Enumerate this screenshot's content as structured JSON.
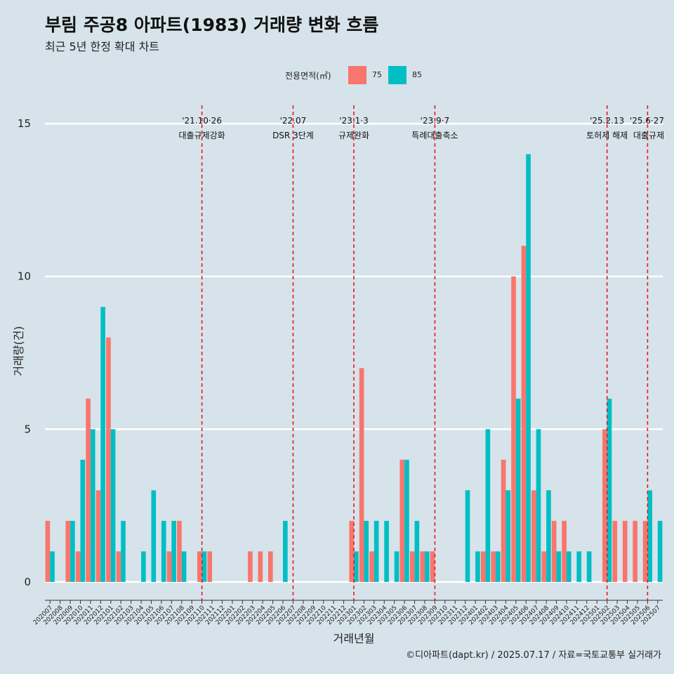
{
  "title": "부림 주공8 아파트(1983) 거래량 변화 흐름",
  "subtitle": "최근 5년 한정 확대 차트",
  "caption": "©디아파트(dapt.kr) / 2025.07.17 / 자료=국토교통부 실거래가",
  "legend": {
    "title": "전용면적(㎡)",
    "items": [
      {
        "label": "75",
        "color": "#f8766d"
      },
      {
        "label": "85",
        "color": "#00bfc4"
      }
    ]
  },
  "chart_data": {
    "type": "bar",
    "title": "부림 주공8 아파트(1983) 거래량 변화 흐름",
    "xlabel": "거래년월",
    "ylabel": "거래량(건)",
    "ylim": [
      -0.6,
      15.6
    ],
    "yticks": [
      0,
      5,
      10,
      15
    ],
    "grid": true,
    "legend_position": "top",
    "categories": [
      "202007",
      "202008",
      "202009",
      "202010",
      "202011",
      "202012",
      "202101",
      "202102",
      "202103",
      "202104",
      "202105",
      "202106",
      "202107",
      "202108",
      "202109",
      "202110",
      "202111",
      "202112",
      "202201",
      "202202",
      "202203",
      "202204",
      "202205",
      "202206",
      "202207",
      "202208",
      "202209",
      "202210",
      "202211",
      "202212",
      "202301",
      "202302",
      "202303",
      "202304",
      "202305",
      "202306",
      "202307",
      "202308",
      "202309",
      "202310",
      "202311",
      "202312",
      "202401",
      "202402",
      "202403",
      "202404",
      "202405",
      "202406",
      "202407",
      "202408",
      "202409",
      "202410",
      "202411",
      "202412",
      "202501",
      "202502",
      "202503",
      "202504",
      "202505",
      "202506",
      "202507"
    ],
    "series": [
      {
        "name": "75",
        "color": "#f8766d",
        "values": [
          2,
          0,
          2,
          1,
          6,
          3,
          8,
          1,
          0,
          0,
          0,
          0,
          1,
          2,
          0,
          1,
          1,
          0,
          0,
          0,
          1,
          1,
          1,
          0,
          0,
          0,
          0,
          0,
          0,
          0,
          2,
          7,
          1,
          0,
          0,
          4,
          1,
          1,
          1,
          0,
          0,
          0,
          0,
          1,
          1,
          4,
          10,
          11,
          3,
          1,
          2,
          2,
          0,
          0,
          0,
          5,
          2,
          2,
          2,
          2,
          0
        ]
      },
      {
        "name": "85",
        "color": "#00bfc4",
        "values": [
          1,
          0,
          2,
          4,
          5,
          9,
          5,
          2,
          0,
          1,
          3,
          2,
          2,
          1,
          0,
          1,
          0,
          0,
          0,
          0,
          0,
          0,
          0,
          2,
          0,
          0,
          0,
          0,
          0,
          0,
          1,
          2,
          2,
          2,
          1,
          4,
          2,
          1,
          0,
          0,
          0,
          3,
          1,
          5,
          1,
          3,
          6,
          14,
          5,
          3,
          1,
          1,
          1,
          1,
          0,
          6,
          0,
          0,
          0,
          3,
          2
        ]
      }
    ],
    "annotations": [
      {
        "at": "202110",
        "date": "'21.10·26",
        "text": "대출규제강화"
      },
      {
        "at": "202207",
        "date": "'22.07",
        "text": "DSR 3단계"
      },
      {
        "at": "202301",
        "date": "'23.1·3",
        "text": "규제완화"
      },
      {
        "at": "202309",
        "date": "'23.9·7",
        "text": "특례대출축소"
      },
      {
        "at": "202502",
        "date": "'25.2.13",
        "text": "토허제 해제"
      },
      {
        "at": "202506",
        "date": "'25.6·27",
        "text": "대출규제"
      }
    ]
  }
}
